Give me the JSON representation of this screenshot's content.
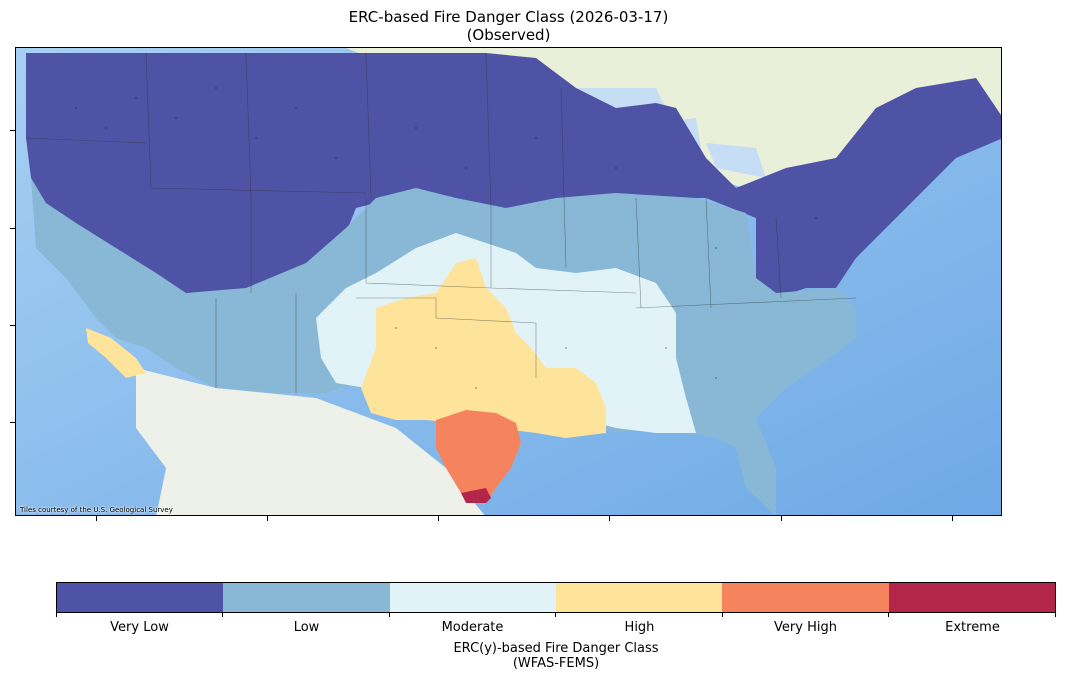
{
  "title": {
    "line1": "ERC-based Fire Danger Class (2026-03-17)",
    "line2": "(Observed)"
  },
  "map": {
    "attribution": "Tiles courtesy of the U.S. Geological Survey",
    "basemap_colors": {
      "ocean": "#8ec2ef",
      "land": "#eef0ea",
      "canada": "#e9efd9",
      "lakes": "#c6def5"
    }
  },
  "colorbar": {
    "classes": [
      {
        "label": "Very Low",
        "color": "#4f53a5"
      },
      {
        "label": "Low",
        "color": "#88b8d6"
      },
      {
        "label": "Moderate",
        "color": "#e2f3f8"
      },
      {
        "label": "High",
        "color": "#fde49a"
      },
      {
        "label": "Very High",
        "color": "#f5845e"
      },
      {
        "label": "Extreme",
        "color": "#b3264a"
      }
    ],
    "title_line1": "ERC(y)-based Fire Danger Class",
    "title_line2": "(WFAS-FEMS)"
  }
}
